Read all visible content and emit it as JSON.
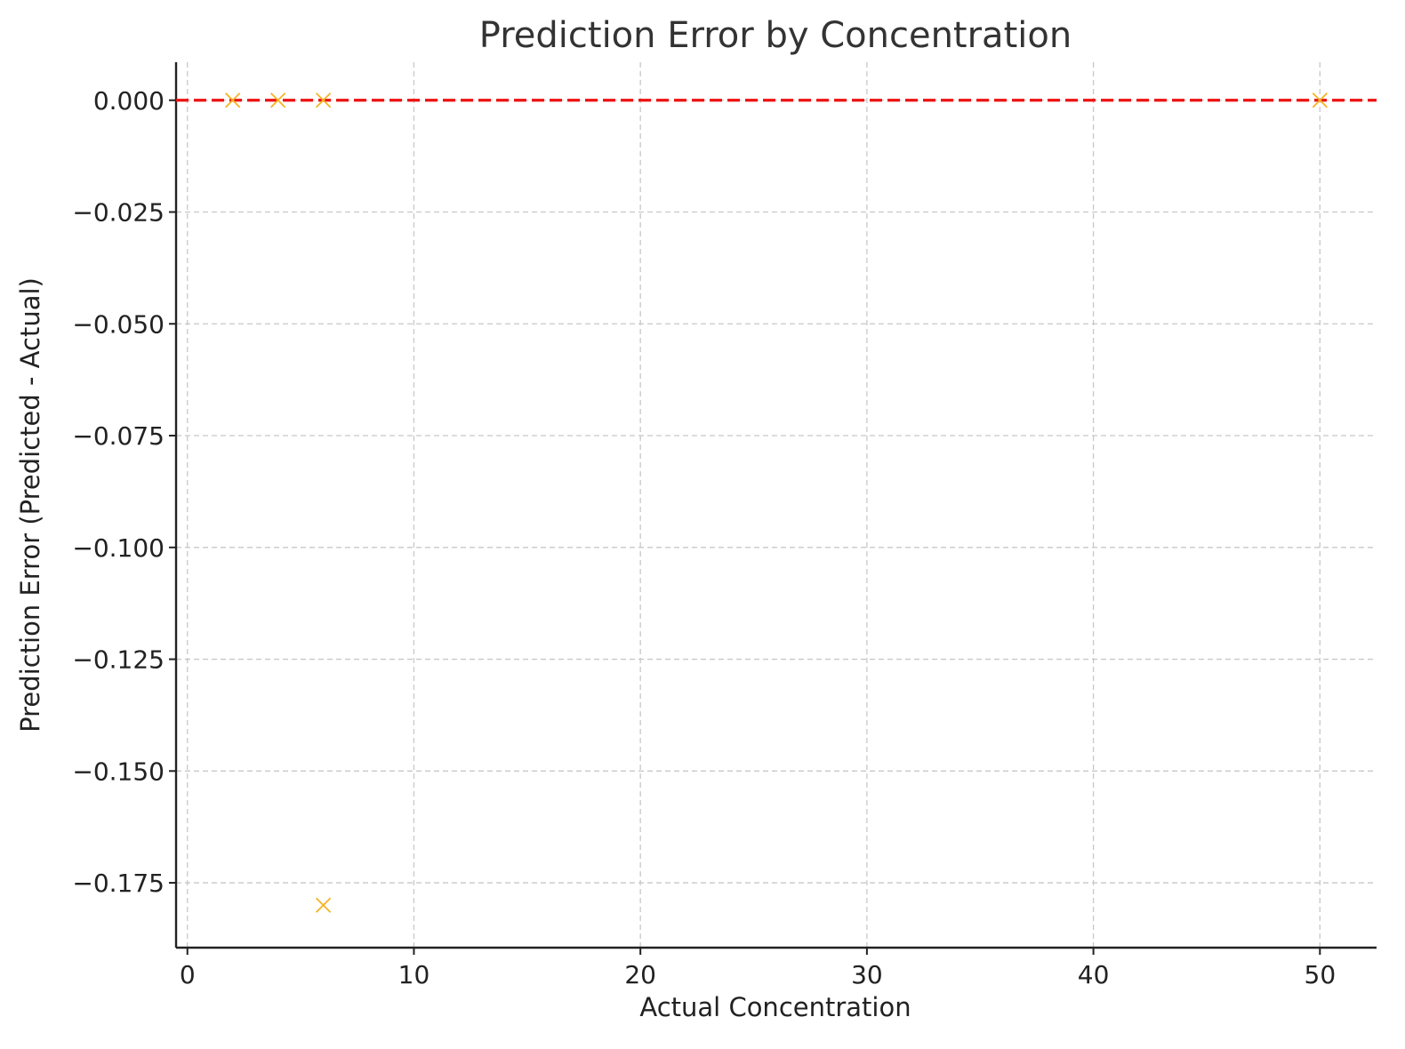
{
  "chart_data": {
    "type": "scatter",
    "title": "Prediction Error by Concentration",
    "xlabel": "Actual Concentration",
    "ylabel": "Prediction Error (Predicted - Actual)",
    "xlim": [
      -0.5,
      52.5
    ],
    "ylim": [
      -0.1895,
      0.0085
    ],
    "x_ticks": [
      0,
      10,
      20,
      30,
      40,
      50
    ],
    "x_tick_labels": [
      "0",
      "10",
      "20",
      "30",
      "40",
      "50"
    ],
    "y_ticks": [
      0,
      -0.025,
      -0.05,
      -0.075,
      -0.1,
      -0.125,
      -0.15,
      -0.175
    ],
    "y_tick_labels": [
      "0.000",
      "−0.025",
      "−0.050",
      "−0.075",
      "−0.100",
      "−0.125",
      "−0.150",
      "−0.175"
    ],
    "grid": true,
    "marker": "x",
    "marker_color": "#f5b324",
    "points": [
      {
        "x": 2,
        "y": 0.0
      },
      {
        "x": 4,
        "y": 0.0
      },
      {
        "x": 6,
        "y": 0.0
      },
      {
        "x": 50,
        "y": 0.0
      },
      {
        "x": 6,
        "y": -0.18
      }
    ],
    "reference_line": {
      "y": 0,
      "style": "dashed",
      "color": "#ee1111"
    }
  }
}
